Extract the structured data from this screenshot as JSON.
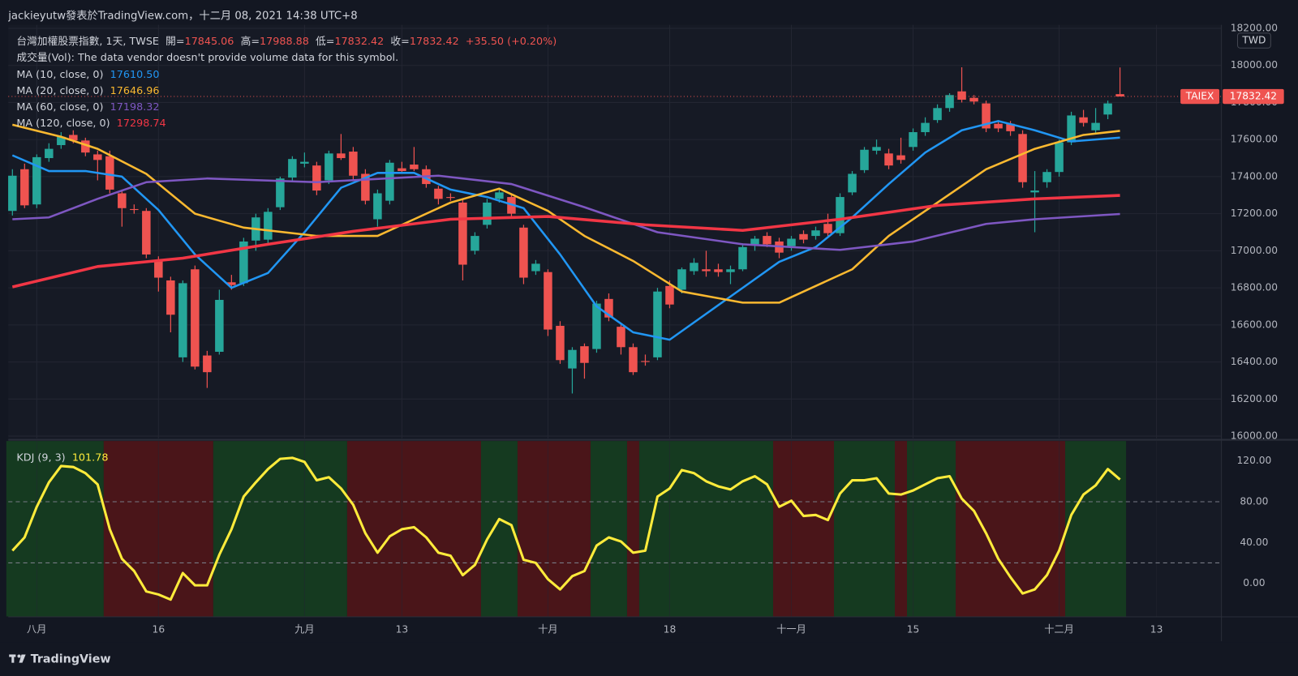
{
  "header": {
    "text": "jackieyutw發表於TradingView.com，十二月 08, 2021 14:38 UTC+8",
    "logo": "TradingView"
  },
  "chart_data": [
    {
      "type": "candlestick",
      "title": "台灣加權股票指數, 1天, TWSE",
      "ohlc_names": [
        "開=",
        "高=",
        "低=",
        "收="
      ],
      "change_label": "+35.50 (+0.20%)",
      "note": "成交量(Vol): The data vendor doesn't provide volume data for this symbol.",
      "currency": "TWD",
      "symbol_tag": "TAIEX",
      "up_color": "#26a69a",
      "down_color": "#ef5350",
      "xlim": [
        -0.34,
        99.3
      ],
      "xticks": [
        {
          "value": 2,
          "label": "八月"
        },
        {
          "value": 12,
          "label": "16"
        },
        {
          "value": 24,
          "label": "九月"
        },
        {
          "value": 32,
          "label": "13"
        },
        {
          "value": 44,
          "label": "十月"
        },
        {
          "value": 54,
          "label": "18"
        },
        {
          "value": 64,
          "label": "十一月"
        },
        {
          "value": 74,
          "label": "15"
        },
        {
          "value": 86,
          "label": "十二月"
        },
        {
          "value": 94,
          "label": "13"
        }
      ],
      "ylim": [
        15987,
        18219
      ],
      "yticks": [
        {
          "value": 16000,
          "label": "16000.00"
        },
        {
          "value": 16200,
          "label": "16200.00"
        },
        {
          "value": 16400,
          "label": "16400.00"
        },
        {
          "value": 16600,
          "label": "16600.00"
        },
        {
          "value": 16800,
          "label": "16800.00"
        },
        {
          "value": 17000,
          "label": "17000.00"
        },
        {
          "value": 17200,
          "label": "17200.00"
        },
        {
          "value": 17400,
          "label": "17400.00"
        },
        {
          "value": 17600,
          "label": "17600.00"
        },
        {
          "value": 17800,
          "label": "17800.00"
        },
        {
          "value": 18000,
          "label": "18000.00"
        },
        {
          "value": 18200,
          "label": "18200.00"
        }
      ],
      "grid": true,
      "candles": {
        "open": [
          17215,
          17440,
          17250,
          17500,
          17570,
          17625,
          17595,
          17520,
          17510,
          17310,
          17225,
          17215,
          16950,
          16840,
          16425,
          16900,
          16435,
          16455,
          16830,
          16825,
          17055,
          17060,
          17235,
          17395,
          17470,
          17460,
          17380,
          17525,
          17535,
          17415,
          17170,
          17270,
          17445,
          17465,
          17440,
          17335,
          17290,
          17260,
          17000,
          17140,
          17280,
          17290,
          17125,
          16890,
          16885,
          16595,
          16365,
          16485,
          16470,
          16740,
          16590,
          16480,
          16405,
          16425,
          16810,
          16790,
          16890,
          16900,
          16900,
          16885,
          16900,
          17035,
          17080,
          17050,
          17025,
          17090,
          17080,
          17145,
          17095,
          17315,
          17435,
          17540,
          17525,
          17515,
          17560,
          17640,
          17705,
          17770,
          17860,
          17825,
          17795,
          17685,
          17685,
          17630,
          17315,
          17370,
          17425,
          17585,
          17720,
          17650,
          17735,
          17845.06
        ],
        "high": [
          17440,
          17470,
          17520,
          17580,
          17640,
          17650,
          17610,
          17540,
          17540,
          17330,
          17250,
          17230,
          16970,
          16860,
          16840,
          16920,
          16460,
          16790,
          16870,
          17070,
          17200,
          17230,
          17400,
          17510,
          17530,
          17480,
          17540,
          17630,
          17560,
          17440,
          17330,
          17490,
          17480,
          17560,
          17460,
          17350,
          17310,
          17280,
          17100,
          17280,
          17330,
          17310,
          17140,
          16950,
          16900,
          16620,
          16480,
          16500,
          16730,
          16770,
          16610,
          16500,
          16440,
          16800,
          16840,
          16910,
          16960,
          17000,
          16930,
          16920,
          17040,
          17080,
          17100,
          17070,
          17080,
          17110,
          17130,
          17200,
          17310,
          17430,
          17560,
          17600,
          17550,
          17610,
          17660,
          17720,
          17790,
          17850,
          17990,
          17840,
          17810,
          17700,
          17700,
          17650,
          17430,
          17440,
          17600,
          17750,
          17760,
          17770,
          17810,
          17988.88
        ],
        "low": [
          17190,
          17230,
          17230,
          17480,
          17550,
          17580,
          17510,
          17380,
          17310,
          17130,
          17200,
          16960,
          16780,
          16560,
          16400,
          16360,
          16260,
          16440,
          16790,
          16810,
          17000,
          17040,
          17220,
          17380,
          17450,
          17300,
          17360,
          17490,
          17380,
          17250,
          17130,
          17250,
          17420,
          17430,
          17340,
          17250,
          17270,
          16840,
          16980,
          17120,
          17260,
          17180,
          16820,
          16870,
          16540,
          16390,
          16230,
          16310,
          16450,
          16620,
          16440,
          16330,
          16380,
          16410,
          16690,
          16770,
          16870,
          16860,
          16860,
          16820,
          16890,
          17000,
          17020,
          16960,
          17000,
          17040,
          17060,
          17080,
          17080,
          17300,
          17420,
          17520,
          17440,
          17470,
          17540,
          17620,
          17690,
          17750,
          17800,
          17790,
          17640,
          17640,
          17620,
          17340,
          17100,
          17340,
          17400,
          17570,
          17670,
          17630,
          17710,
          17832.42
        ],
        "close": [
          17405,
          17245,
          17505,
          17550,
          17615,
          17595,
          17530,
          17490,
          17330,
          17230,
          17220,
          16980,
          16855,
          16655,
          16825,
          16375,
          16345,
          16735,
          16815,
          17050,
          17180,
          17210,
          17390,
          17495,
          17480,
          17325,
          17525,
          17500,
          17405,
          17270,
          17310,
          17475,
          17430,
          17440,
          17360,
          17280,
          17285,
          16925,
          17080,
          17260,
          17315,
          17200,
          16855,
          16930,
          16575,
          16410,
          16465,
          16395,
          16715,
          16640,
          16480,
          16345,
          16400,
          16780,
          16710,
          16900,
          16935,
          16890,
          16885,
          16900,
          17020,
          17065,
          17035,
          16990,
          17065,
          17060,
          17110,
          17095,
          17290,
          17415,
          17545,
          17560,
          17460,
          17490,
          17640,
          17690,
          17770,
          17840,
          17815,
          17805,
          17660,
          17660,
          17645,
          17370,
          17325,
          17425,
          17585,
          17730,
          17690,
          17690,
          17795,
          17832.42
        ]
      },
      "series": [
        {
          "name": "MA (10, close, 0)",
          "color": "#2196f3",
          "legend_value": "17610.50",
          "x": [
            0,
            3,
            6,
            9,
            12,
            15,
            18,
            21,
            24,
            27,
            30,
            33,
            36,
            39,
            42,
            45,
            48,
            51,
            54,
            57,
            60,
            63,
            66,
            69,
            72,
            75,
            78,
            81,
            84,
            87,
            91
          ],
          "values": [
            17515,
            17430,
            17430,
            17400,
            17220,
            16980,
            16800,
            16880,
            17100,
            17340,
            17420,
            17420,
            17330,
            17290,
            17230,
            16980,
            16700,
            16560,
            16520,
            16660,
            16800,
            16940,
            17020,
            17180,
            17360,
            17530,
            17650,
            17700,
            17650,
            17590,
            17610.5
          ]
        },
        {
          "name": "MA (20, close, 0)",
          "color": "#fbb930",
          "legend_value": "17646.96",
          "x": [
            0,
            4,
            7,
            11,
            15,
            19,
            25,
            30,
            36,
            40,
            44,
            47,
            51,
            55,
            60,
            63,
            66,
            69,
            72,
            76,
            80,
            84,
            88,
            91
          ],
          "values": [
            17680,
            17615,
            17550,
            17415,
            17200,
            17125,
            17080,
            17080,
            17260,
            17335,
            17215,
            17080,
            16945,
            16780,
            16720,
            16720,
            16810,
            16900,
            17080,
            17260,
            17440,
            17550,
            17625,
            17646.96
          ]
        },
        {
          "name": "MA (60, close, 0)",
          "color": "#7e57c2",
          "legend_value": "17198.32",
          "x": [
            0,
            3,
            7,
            11,
            16,
            25,
            35,
            41,
            47,
            53,
            60,
            68,
            74,
            80,
            84,
            91
          ],
          "values": [
            17170,
            17180,
            17280,
            17370,
            17390,
            17370,
            17405,
            17360,
            17235,
            17100,
            17035,
            17005,
            17050,
            17145,
            17170,
            17198.32
          ]
        },
        {
          "name": "MA (120, close, 0)",
          "color": "#f23645",
          "legend_value": "17298.74",
          "x": [
            0,
            7,
            14,
            21,
            28,
            36,
            44,
            52,
            60,
            68,
            76,
            84,
            91
          ],
          "values": [
            16805,
            16915,
            16960,
            17035,
            17105,
            17170,
            17185,
            17140,
            17110,
            17170,
            17245,
            17280,
            17298.74
          ]
        }
      ]
    },
    {
      "type": "line",
      "title": "KDJ (9, 3)",
      "ylim": [
        -32.5,
        139.5
      ],
      "yticks": [
        {
          "value": 0,
          "label": "0.00"
        },
        {
          "value": 40,
          "label": "40.00"
        },
        {
          "value": 80,
          "label": "80.00"
        },
        {
          "value": 120,
          "label": "120.00"
        }
      ],
      "hlines": [
        80,
        20
      ],
      "series": [
        {
          "color": "#ffeb3b",
          "values": [
            32,
            45,
            75,
            99,
            115,
            114,
            108,
            97,
            53,
            24,
            12,
            -8,
            -11,
            -16,
            10,
            -2,
            -2,
            28,
            53,
            85,
            99,
            112,
            122,
            123,
            119,
            101,
            104,
            93,
            77,
            49,
            30,
            46,
            53,
            55,
            45,
            30,
            27,
            8,
            18,
            43,
            63,
            57,
            23,
            20,
            4,
            -6,
            7,
            12,
            37,
            45,
            41,
            30,
            32,
            85,
            93,
            111,
            108,
            100,
            95,
            92,
            100,
            105,
            97,
            75,
            81,
            66,
            67,
            62,
            88,
            101,
            101,
            103,
            88,
            87,
            91,
            97,
            103,
            105,
            83,
            71,
            49,
            24,
            6,
            -10,
            -6,
            8,
            32,
            67,
            87,
            96,
            112,
            101.78
          ]
        }
      ],
      "zones": [
        {
          "from": 0,
          "to": 7,
          "color": "#153a20"
        },
        {
          "from": 8,
          "to": 16,
          "color": "#4a1519"
        },
        {
          "from": 17,
          "to": 27,
          "color": "#153a20"
        },
        {
          "from": 28,
          "to": 38,
          "color": "#4a1519"
        },
        {
          "from": 39,
          "to": 41,
          "color": "#153a20"
        },
        {
          "from": 42,
          "to": 47,
          "color": "#4a1519"
        },
        {
          "from": 48,
          "to": 50,
          "color": "#153a20"
        },
        {
          "from": 51,
          "to": 51,
          "color": "#4a1519"
        },
        {
          "from": 52,
          "to": 62,
          "color": "#153a20"
        },
        {
          "from": 63,
          "to": 67,
          "color": "#4a1519"
        },
        {
          "from": 68,
          "to": 72,
          "color": "#153a20"
        },
        {
          "from": 73,
          "to": 73,
          "color": "#4a1519"
        },
        {
          "from": 74,
          "to": 77,
          "color": "#153a20"
        },
        {
          "from": 78,
          "to": 86,
          "color": "#4a1519"
        },
        {
          "from": 87,
          "to": 91,
          "color": "#153a20"
        }
      ]
    }
  ]
}
